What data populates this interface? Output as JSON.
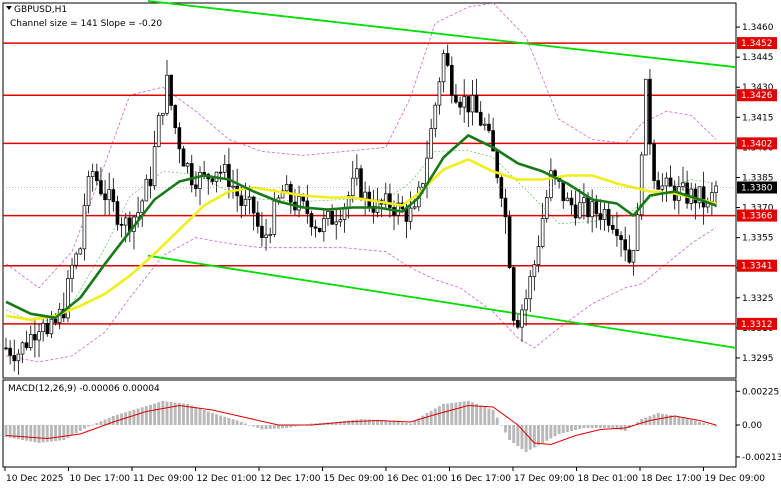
{
  "header": {
    "symbol": "GBPUSD,H1",
    "indicator": "Channel size = 141  Slope = -0.20"
  },
  "macd": {
    "label": "MACD(12,26,9) -0.00006 0.00004",
    "ticks": [
      {
        "value": 0.00225,
        "label": "0.00225"
      },
      {
        "value": 0.0,
        "label": "0.00"
      },
      {
        "value": -0.00213,
        "label": "-0.00213"
      }
    ]
  },
  "colors": {
    "background": "#ffffff",
    "up_candle": "#ffffff",
    "down_candle": "#000000",
    "level_line": "#e00000",
    "level_label_bg": "#e00000",
    "channel": "#00dd00",
    "ma_fast": "#177a17",
    "ma_slow": "#f2ee1a",
    "bollinger": "#cc66cc",
    "macd_hist": "#b8b8b8",
    "macd_signal": "#dd0000",
    "current_price_bg": "#000000"
  },
  "chart_data": {
    "type": "candlestick",
    "title": "GBPUSD,H1",
    "ylim": [
      1.3285,
      1.3472
    ],
    "y_ticks": [
      {
        "value": 1.346,
        "label": "1.3460"
      },
      {
        "value": 1.3445,
        "label": "1.3445"
      },
      {
        "value": 1.343,
        "label": "1.3430"
      },
      {
        "value": 1.3415,
        "label": "1.3415"
      },
      {
        "value": 1.34,
        "label": "1.3400"
      },
      {
        "value": 1.3385,
        "label": "1.3385"
      },
      {
        "value": 1.337,
        "label": "1.3370"
      },
      {
        "value": 1.3355,
        "label": "1.3355"
      },
      {
        "value": 1.334,
        "label": "1.3340"
      },
      {
        "value": 1.3325,
        "label": "1.3325"
      },
      {
        "value": 1.331,
        "label": "1.3310"
      },
      {
        "value": 1.3295,
        "label": "1.3295"
      }
    ],
    "x_labels": [
      "10 Dec 2025",
      "10 Dec 17:00",
      "11 Dec 09:00",
      "12 Dec 01:00",
      "12 Dec 17:00",
      "15 Dec 09:00",
      "16 Dec 01:00",
      "16 Dec 17:00",
      "17 Dec 09:00",
      "18 Dec 01:00",
      "18 Dec 17:00",
      "19 Dec 09:00"
    ],
    "levels": [
      {
        "value": 1.3452,
        "label": "1.3452"
      },
      {
        "value": 1.3426,
        "label": "1.3426"
      },
      {
        "value": 1.3402,
        "label": "1.3402"
      },
      {
        "value": 1.3366,
        "label": "1.3366"
      },
      {
        "value": 1.3341,
        "label": "1.3341"
      },
      {
        "value": 1.3312,
        "label": "1.3312"
      }
    ],
    "current_price": {
      "value": 1.338,
      "label": "1.3380"
    },
    "channel": {
      "upper": [
        [
          0,
          1.3473
        ],
        [
          172,
          1.344
        ]
      ],
      "lower": [
        [
          0,
          1.3346
        ],
        [
          172,
          1.33
        ]
      ]
    },
    "ma_fast": [
      [
        0,
        1.3323
      ],
      [
        6,
        1.3317
      ],
      [
        12,
        1.3315
      ],
      [
        18,
        1.3325
      ],
      [
        24,
        1.3342
      ],
      [
        30,
        1.3358
      ],
      [
        36,
        1.3374
      ],
      [
        42,
        1.3383
      ],
      [
        48,
        1.3386
      ],
      [
        54,
        1.3384
      ],
      [
        60,
        1.3378
      ],
      [
        66,
        1.3373
      ],
      [
        72,
        1.337
      ],
      [
        78,
        1.3369
      ],
      [
        84,
        1.337
      ],
      [
        90,
        1.337
      ],
      [
        96,
        1.3368
      ],
      [
        100,
        1.3375
      ],
      [
        106,
        1.3395
      ],
      [
        112,
        1.3406
      ],
      [
        118,
        1.34
      ],
      [
        124,
        1.3392
      ],
      [
        130,
        1.3388
      ],
      [
        136,
        1.3382
      ],
      [
        142,
        1.3374
      ],
      [
        148,
        1.3372
      ],
      [
        152,
        1.3366
      ],
      [
        156,
        1.3376
      ],
      [
        162,
        1.3378
      ],
      [
        168,
        1.3374
      ],
      [
        172,
        1.3371
      ]
    ],
    "ma_slow": [
      [
        0,
        1.3316
      ],
      [
        6,
        1.3314
      ],
      [
        12,
        1.3316
      ],
      [
        18,
        1.3321
      ],
      [
        24,
        1.3327
      ],
      [
        30,
        1.3336
      ],
      [
        36,
        1.3347
      ],
      [
        42,
        1.3359
      ],
      [
        48,
        1.3371
      ],
      [
        54,
        1.3378
      ],
      [
        60,
        1.338
      ],
      [
        66,
        1.3378
      ],
      [
        72,
        1.3376
      ],
      [
        78,
        1.3375
      ],
      [
        84,
        1.3375
      ],
      [
        90,
        1.3373
      ],
      [
        96,
        1.3371
      ],
      [
        100,
        1.3377
      ],
      [
        106,
        1.3389
      ],
      [
        112,
        1.3394
      ],
      [
        118,
        1.3388
      ],
      [
        124,
        1.3384
      ],
      [
        130,
        1.3384
      ],
      [
        136,
        1.3386
      ],
      [
        142,
        1.3386
      ],
      [
        148,
        1.3382
      ],
      [
        152,
        1.338
      ],
      [
        156,
        1.3378
      ],
      [
        162,
        1.3377
      ],
      [
        168,
        1.3374
      ],
      [
        172,
        1.3372
      ]
    ],
    "bollinger_upper": [
      [
        0,
        1.3342
      ],
      [
        8,
        1.333
      ],
      [
        16,
        1.3348
      ],
      [
        24,
        1.3392
      ],
      [
        30,
        1.3426
      ],
      [
        38,
        1.343
      ],
      [
        46,
        1.3418
      ],
      [
        54,
        1.3404
      ],
      [
        62,
        1.3398
      ],
      [
        72,
        1.3396
      ],
      [
        82,
        1.3398
      ],
      [
        92,
        1.34
      ],
      [
        98,
        1.3425
      ],
      [
        104,
        1.3462
      ],
      [
        112,
        1.347
      ],
      [
        118,
        1.3472
      ],
      [
        126,
        1.3455
      ],
      [
        134,
        1.3414
      ],
      [
        142,
        1.3404
      ],
      [
        150,
        1.3402
      ],
      [
        154,
        1.3412
      ],
      [
        160,
        1.3418
      ],
      [
        166,
        1.3416
      ],
      [
        172,
        1.3404
      ]
    ],
    "bollinger_lower": [
      [
        0,
        1.3296
      ],
      [
        8,
        1.3293
      ],
      [
        16,
        1.3296
      ],
      [
        24,
        1.3308
      ],
      [
        30,
        1.3325
      ],
      [
        38,
        1.3346
      ],
      [
        46,
        1.3355
      ],
      [
        54,
        1.3352
      ],
      [
        62,
        1.335
      ],
      [
        72,
        1.335
      ],
      [
        82,
        1.335
      ],
      [
        92,
        1.3348
      ],
      [
        98,
        1.334
      ],
      [
        104,
        1.3334
      ],
      [
        110,
        1.333
      ],
      [
        118,
        1.3318
      ],
      [
        124,
        1.3305
      ],
      [
        128,
        1.33
      ],
      [
        134,
        1.331
      ],
      [
        142,
        1.3322
      ],
      [
        150,
        1.333
      ],
      [
        154,
        1.3332
      ],
      [
        160,
        1.3342
      ],
      [
        166,
        1.3352
      ],
      [
        172,
        1.336
      ]
    ],
    "candles_path": [
      [
        0,
        1.33
      ],
      [
        3,
        1.3298
      ],
      [
        6,
        1.3306
      ],
      [
        9,
        1.3316
      ],
      [
        10,
        1.3305
      ],
      [
        12,
        1.3312
      ],
      [
        14,
        1.332
      ],
      [
        16,
        1.334
      ],
      [
        18,
        1.335
      ],
      [
        19,
        1.3372
      ],
      [
        21,
        1.3388
      ],
      [
        23,
        1.338
      ],
      [
        26,
        1.337
      ],
      [
        29,
        1.3362
      ],
      [
        32,
        1.3368
      ],
      [
        35,
        1.3385
      ],
      [
        37,
        1.3412
      ],
      [
        39,
        1.3432
      ],
      [
        41,
        1.341
      ],
      [
        43,
        1.3395
      ],
      [
        45,
        1.3386
      ],
      [
        48,
        1.3384
      ],
      [
        51,
        1.339
      ],
      [
        54,
        1.3385
      ],
      [
        57,
        1.3372
      ],
      [
        60,
        1.3368
      ],
      [
        62,
        1.3352
      ],
      [
        64,
        1.3362
      ],
      [
        67,
        1.3378
      ],
      [
        70,
        1.3372
      ],
      [
        73,
        1.3368
      ],
      [
        76,
        1.336
      ],
      [
        79,
        1.3365
      ],
      [
        82,
        1.3372
      ],
      [
        85,
        1.3384
      ],
      [
        87,
        1.3375
      ],
      [
        90,
        1.337
      ],
      [
        93,
        1.3372
      ],
      [
        96,
        1.3368
      ],
      [
        99,
        1.3366
      ],
      [
        101,
        1.3385
      ],
      [
        103,
        1.3408
      ],
      [
        105,
        1.3435
      ],
      [
        106,
        1.3446
      ],
      [
        108,
        1.3432
      ],
      [
        110,
        1.3425
      ],
      [
        113,
        1.342
      ],
      [
        116,
        1.341
      ],
      [
        118,
        1.3396
      ],
      [
        120,
        1.338
      ],
      [
        121,
        1.3365
      ],
      [
        122,
        1.3345
      ],
      [
        123,
        1.3318
      ],
      [
        124,
        1.3315
      ],
      [
        126,
        1.3325
      ],
      [
        128,
        1.3342
      ],
      [
        130,
        1.3365
      ],
      [
        132,
        1.3385
      ],
      [
        134,
        1.338
      ],
      [
        136,
        1.3372
      ],
      [
        139,
        1.337
      ],
      [
        142,
        1.3368
      ],
      [
        145,
        1.3368
      ],
      [
        148,
        1.3362
      ],
      [
        150,
        1.3352
      ],
      [
        151,
        1.3344
      ],
      [
        153,
        1.3362
      ],
      [
        154,
        1.3402
      ],
      [
        155,
        1.3428
      ],
      [
        156,
        1.3405
      ],
      [
        157,
        1.3388
      ],
      [
        159,
        1.338
      ],
      [
        162,
        1.3378
      ],
      [
        165,
        1.3376
      ],
      [
        168,
        1.3375
      ],
      [
        170,
        1.337
      ],
      [
        172,
        1.338
      ]
    ],
    "macd_hist": [
      [
        0,
        -0.0008
      ],
      [
        8,
        -0.0012
      ],
      [
        14,
        -0.001
      ],
      [
        20,
        -0.0001
      ],
      [
        26,
        0.0006
      ],
      [
        32,
        0.0011
      ],
      [
        38,
        0.0016
      ],
      [
        44,
        0.0014
      ],
      [
        50,
        0.0008
      ],
      [
        56,
        0.0003
      ],
      [
        62,
        -0.0003
      ],
      [
        68,
        -0.0002
      ],
      [
        74,
        0.0001
      ],
      [
        80,
        0.0002
      ],
      [
        86,
        0.0004
      ],
      [
        92,
        0.0003
      ],
      [
        98,
        0.0001
      ],
      [
        102,
        0.0008
      ],
      [
        106,
        0.0014
      ],
      [
        112,
        0.0016
      ],
      [
        118,
        0.001
      ],
      [
        122,
        -0.001
      ],
      [
        126,
        -0.0018
      ],
      [
        130,
        -0.0012
      ],
      [
        134,
        -0.0006
      ],
      [
        140,
        -0.0002
      ],
      [
        146,
        -0.0002
      ],
      [
        150,
        -0.0004
      ],
      [
        154,
        0.0004
      ],
      [
        158,
        0.0008
      ],
      [
        164,
        0.0005
      ],
      [
        168,
        0.0002
      ],
      [
        172,
        -0.0001
      ]
    ],
    "macd_signal": [
      [
        0,
        -0.0007
      ],
      [
        10,
        -0.0009
      ],
      [
        18,
        -0.0006
      ],
      [
        26,
        0.0002
      ],
      [
        34,
        0.0009
      ],
      [
        42,
        0.0013
      ],
      [
        50,
        0.001
      ],
      [
        58,
        0.0005
      ],
      [
        66,
        0.0
      ],
      [
        74,
        0.0
      ],
      [
        82,
        0.0002
      ],
      [
        90,
        0.0003
      ],
      [
        98,
        0.0002
      ],
      [
        104,
        0.0007
      ],
      [
        112,
        0.0013
      ],
      [
        118,
        0.0012
      ],
      [
        124,
        0.0
      ],
      [
        128,
        -0.0012
      ],
      [
        132,
        -0.0013
      ],
      [
        138,
        -0.0007
      ],
      [
        144,
        -0.0003
      ],
      [
        150,
        -0.0002
      ],
      [
        156,
        0.0003
      ],
      [
        162,
        0.0006
      ],
      [
        168,
        0.0003
      ],
      [
        172,
        0.0
      ]
    ]
  }
}
